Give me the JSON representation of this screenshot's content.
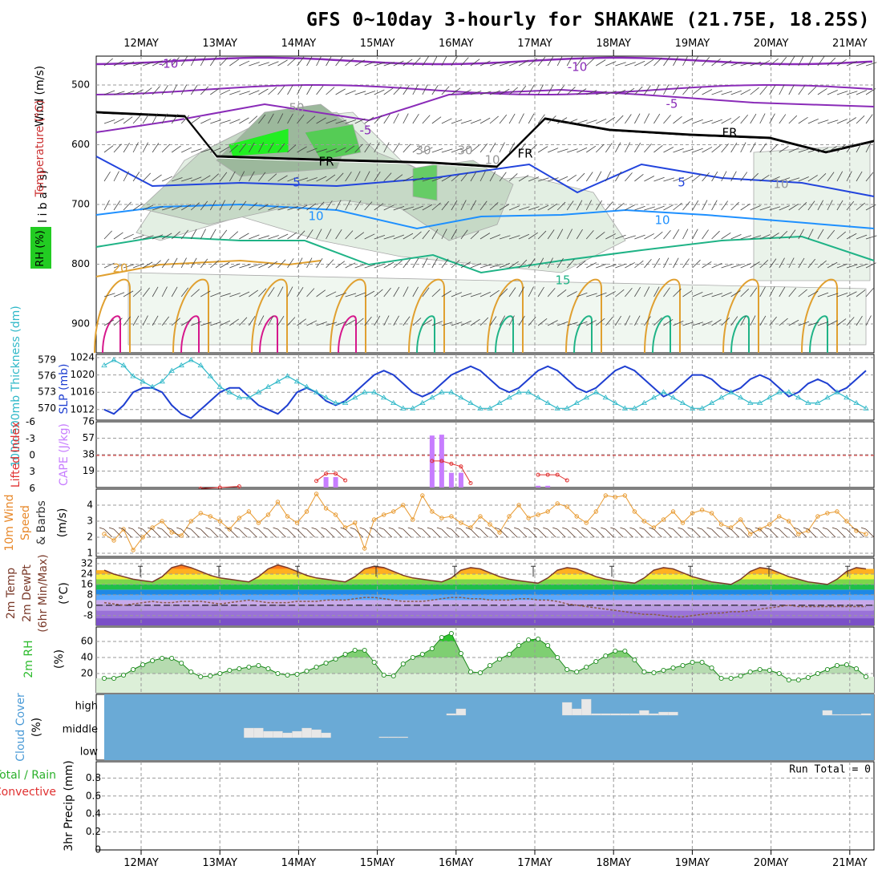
{
  "title": "GFS 0~10day 3-hourly for SHAKAWE (21.75E, 18.25S)",
  "dates": [
    "12MAY",
    "13MAY",
    "14MAY",
    "15MAY",
    "16MAY",
    "17MAY",
    "18MAY",
    "19MAY",
    "20MAY",
    "21MAY"
  ],
  "colors": {
    "grid": "#9a9a9a",
    "purple": "#8a2bb8",
    "blue": "#2244dd",
    "lightblue": "#1e90ff",
    "teal": "#1fb386",
    "orange": "#e0a030",
    "magenta": "#d6178c",
    "slp": "#1f3fd1",
    "thick": "#2fb8c8",
    "cape": "#c77dff",
    "li": "#e03030",
    "wind": "#e89a30",
    "rh": "#2dbb2d",
    "cloud": "#6aaad6",
    "freeze": "#000000"
  },
  "panels": {
    "upper": {
      "ylabel_wind": "Wind (m/s)",
      "ylabel_temp": "Temperature (°C)",
      "ylabel_pressure": "(m i l l i b a r s)",
      "ylabel_rh": "RH (%)",
      "yticks": [
        "500",
        "600",
        "700",
        "800",
        "900"
      ],
      "contour_labels": [
        "-10",
        "-10",
        "-5",
        "-5",
        "5",
        "5",
        "10",
        "10",
        "10",
        "15",
        "20",
        "FR",
        "FR",
        "FR",
        "30",
        "30",
        "50",
        "10"
      ]
    },
    "slp": {
      "ylabel_left": "1000-500mb Thickness (dm)",
      "ylabel_right": "SLP (mb)",
      "left_ticks": [
        "579",
        "576",
        "573",
        "570"
      ],
      "right_ticks": [
        "1024",
        "1020",
        "1016",
        "1012"
      ]
    },
    "cape": {
      "ylabel_left": "Lifted Index",
      "ylabel_right": "CAPE (J/kg)",
      "left_ticks": [
        "-6",
        "-3",
        "0",
        "3",
        "6"
      ],
      "right_ticks": [
        "76",
        "57",
        "38",
        "19"
      ]
    },
    "wind": {
      "ylabel_1": "10m Wind",
      "ylabel_2": "Speed",
      "ylabel_3": "& Barbs",
      "ylabel_unit": "(m/s)",
      "yticks": [
        "4",
        "3",
        "2",
        "1"
      ]
    },
    "temp": {
      "ylabel_1": "2m Temp",
      "ylabel_2": "2m DewPt",
      "ylabel_3": "(6hr Min/Max)",
      "ylabel_unit": "(°C)",
      "yticks": [
        "32",
        "24",
        "16",
        "8",
        "0",
        "-8"
      ]
    },
    "rh": {
      "ylabel_1": "2m RH",
      "ylabel_unit": "(%)",
      "yticks": [
        "60",
        "40",
        "20"
      ]
    },
    "cloud": {
      "ylabel_1": "Cloud Cover",
      "ylabel_unit": "(%)",
      "levels": [
        "high",
        "middle",
        "low"
      ]
    },
    "precip": {
      "ylabel_1": "Total / Rain",
      "ylabel_2": "Convective",
      "ylabel_3": "3hr Precip (mm)",
      "yticks": [
        "0.8",
        "0.6",
        "0.4",
        "0.2",
        "0"
      ],
      "run_total": "Run Total = 0"
    }
  },
  "chart_data": [
    {
      "type": "line",
      "name": "SLP and 1000-500mb thickness",
      "x_count": 80,
      "series": [
        {
          "name": "SLP (mb)",
          "values": [
            1012,
            1011,
            1013,
            1016,
            1017,
            1017,
            1016,
            1013,
            1011,
            1010,
            1012,
            1014,
            1016,
            1017,
            1017,
            1015,
            1013,
            1012,
            1011,
            1013,
            1016,
            1017,
            1016,
            1014,
            1013,
            1014,
            1016,
            1018,
            1020,
            1021,
            1020,
            1018,
            1016,
            1015,
            1016,
            1018,
            1020,
            1021,
            1022,
            1021,
            1019,
            1017,
            1016,
            1017,
            1019,
            1021,
            1022,
            1021,
            1019,
            1017,
            1016,
            1017,
            1019,
            1021,
            1022,
            1021,
            1019,
            1017,
            1015,
            1016,
            1018,
            1020,
            1020,
            1019,
            1017,
            1016,
            1017,
            1019,
            1020,
            1019,
            1017,
            1015,
            1016,
            1018,
            1019,
            1018,
            1016,
            1017,
            1019,
            1021
          ]
        },
        {
          "name": "Thickness (dm)",
          "values": [
            578,
            579,
            578,
            576,
            575,
            574,
            575,
            577,
            578,
            579,
            578,
            576,
            574,
            573,
            572,
            572,
            573,
            574,
            575,
            576,
            575,
            574,
            573,
            572,
            571,
            571,
            572,
            573,
            573,
            572,
            571,
            570,
            570,
            571,
            572,
            573,
            573,
            572,
            571,
            570,
            570,
            571,
            572,
            573,
            573,
            572,
            571,
            570,
            570,
            571,
            572,
            573,
            572,
            571,
            570,
            570,
            571,
            572,
            573,
            572,
            571,
            570,
            570,
            571,
            572,
            573,
            572,
            571,
            571,
            572,
            573,
            573,
            572,
            571,
            571,
            572,
            573,
            572,
            571,
            570
          ]
        }
      ]
    },
    {
      "type": "bar",
      "name": "CAPE and Lifted Index",
      "bars_cape": [
        {
          "i": 23,
          "value": 12
        },
        {
          "i": 24,
          "value": 12
        },
        {
          "i": 34,
          "value": 60
        },
        {
          "i": 35,
          "value": 61
        },
        {
          "i": 36,
          "value": 17
        },
        {
          "i": 37,
          "value": 17
        },
        {
          "i": 45,
          "value": 2
        },
        {
          "i": 46,
          "value": 2
        }
      ],
      "lifted_index": [
        {
          "i": 10,
          "value": 6
        },
        {
          "i": 12,
          "value": 5.8
        },
        {
          "i": 14,
          "value": 5.6
        },
        {
          "i": 22,
          "value": 4.6
        },
        {
          "i": 23,
          "value": 3.3
        },
        {
          "i": 24,
          "value": 3.3
        },
        {
          "i": 25,
          "value": 4.5
        },
        {
          "i": 34,
          "value": 1
        },
        {
          "i": 35,
          "value": 1
        },
        {
          "i": 36,
          "value": 1.5
        },
        {
          "i": 37,
          "value": 2
        },
        {
          "i": 38,
          "value": 5
        },
        {
          "i": 45,
          "value": 3.5
        },
        {
          "i": 46,
          "value": 3.5
        },
        {
          "i": 47,
          "value": 3.5
        },
        {
          "i": 48,
          "value": 4.5
        }
      ]
    },
    {
      "type": "line",
      "name": "10m wind speed",
      "series": [
        {
          "name": "10m Wind Speed (m/s)",
          "values": [
            2.2,
            1.8,
            2.5,
            1.2,
            2.0,
            2.6,
            3.0,
            2.3,
            2.1,
            3.0,
            3.5,
            3.3,
            3.0,
            2.5,
            3.2,
            3.6,
            2.9,
            3.4,
            4.2,
            3.3,
            2.9,
            3.6,
            4.7,
            3.8,
            3.4,
            2.6,
            2.9,
            1.3,
            3.1,
            3.4,
            3.6,
            4.0,
            3.1,
            4.6,
            3.6,
            3.2,
            3.3,
            2.9,
            2.6,
            3.3,
            2.8,
            2.3,
            3.3,
            4.0,
            3.2,
            3.4,
            3.6,
            4.1,
            3.9,
            3.3,
            2.9,
            3.6,
            4.6,
            4.5,
            4.6,
            3.6,
            3.0,
            2.6,
            3.1,
            3.6,
            2.9,
            3.5,
            3.7,
            3.5,
            2.8,
            2.6,
            3.1,
            2.2,
            2.5,
            2.8,
            3.3,
            3.0,
            2.2,
            2.4,
            3.3,
            3.5,
            3.6,
            3.0,
            2.4,
            2.2
          ]
        }
      ]
    },
    {
      "type": "line",
      "name": "2m temperature and dew point",
      "series": [
        {
          "name": "2m Temp (°C)",
          "values": [
            27,
            24,
            22,
            20,
            19,
            18,
            22,
            29,
            31,
            29,
            26,
            23,
            21,
            20,
            19,
            18,
            22,
            28,
            31,
            29,
            26,
            23,
            21,
            20,
            19,
            18,
            22,
            28,
            30,
            29,
            26,
            23,
            21,
            20,
            19,
            18,
            21,
            27,
            29,
            28,
            25,
            22,
            20,
            19,
            18,
            17,
            21,
            27,
            29,
            28,
            25,
            22,
            20,
            19,
            18,
            17,
            21,
            27,
            29,
            28,
            25,
            22,
            20,
            18,
            17,
            16,
            20,
            26,
            29,
            28,
            25,
            22,
            20,
            18,
            17,
            16,
            20,
            26,
            29,
            28
          ]
        },
        {
          "name": "2m DewPt (°C)",
          "values": [
            2,
            1,
            0,
            1,
            2,
            3,
            2,
            2,
            3,
            3,
            3,
            2,
            1,
            2,
            3,
            4,
            3,
            2,
            2,
            2,
            3,
            3,
            3,
            4,
            4,
            4,
            5,
            6,
            6,
            5,
            4,
            3,
            3,
            3,
            4,
            5,
            6,
            6,
            5,
            5,
            4,
            4,
            4,
            5,
            5,
            4,
            4,
            3,
            1,
            0,
            -1,
            -2,
            -3,
            -4,
            -5,
            -6,
            -7,
            -7,
            -8,
            -9,
            -9,
            -8,
            -7,
            -6,
            -6,
            -5,
            -5,
            -4,
            -3,
            -2,
            -1,
            0,
            -1,
            -1,
            -1,
            -1,
            -1,
            -1,
            -1,
            -1
          ]
        }
      ]
    },
    {
      "type": "area",
      "name": "2m relative humidity",
      "series": [
        {
          "name": "2m RH (%)",
          "values": [
            14,
            14,
            18,
            25,
            31,
            36,
            39,
            39,
            33,
            22,
            16,
            17,
            20,
            24,
            26,
            28,
            30,
            26,
            20,
            18,
            19,
            23,
            28,
            33,
            38,
            44,
            49,
            49,
            34,
            18,
            17,
            32,
            40,
            44,
            51,
            65,
            70,
            45,
            22,
            21,
            30,
            38,
            44,
            55,
            62,
            63,
            55,
            40,
            25,
            22,
            28,
            35,
            42,
            48,
            48,
            37,
            22,
            21,
            24,
            27,
            30,
            34,
            34,
            27,
            14,
            14,
            17,
            22,
            25,
            24,
            20,
            12,
            12,
            15,
            20,
            25,
            30,
            31,
            26,
            16
          ]
        }
      ]
    },
    {
      "type": "bar",
      "name": "cloud cover",
      "levels": [
        "high",
        "middle",
        "low"
      ],
      "middle": [
        {
          "start": 15,
          "end": 23,
          "values": [
            60,
            60,
            40,
            40,
            30,
            40,
            60,
            50,
            30
          ]
        },
        {
          "start": 29,
          "end": 31,
          "values": [
            5,
            5,
            5
          ]
        }
      ],
      "high": [
        {
          "start": 36,
          "end": 37,
          "values": [
            10,
            40
          ]
        },
        {
          "start": 48,
          "end": 50,
          "values": [
            80,
            40,
            100
          ]
        },
        {
          "start": 51,
          "end": 59,
          "values": [
            10,
            10,
            10,
            10,
            10,
            30,
            10,
            20,
            20
          ]
        },
        {
          "start": 75,
          "end": 79,
          "values": [
            30,
            5,
            5,
            5,
            10
          ]
        }
      ]
    },
    {
      "type": "bar",
      "name": "3hr precipitation",
      "ylim": [
        0,
        0.9
      ],
      "values": []
    }
  ]
}
